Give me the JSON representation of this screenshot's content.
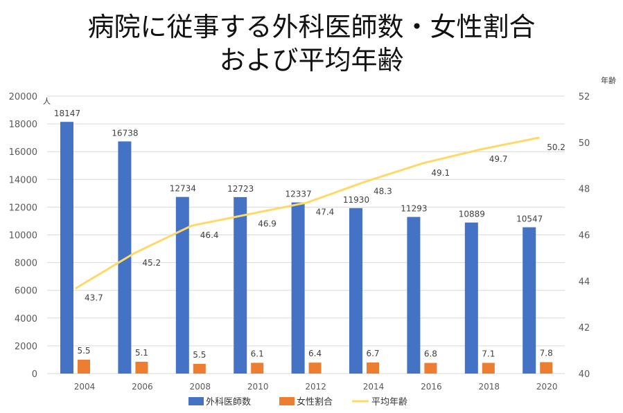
{
  "chart_data": {
    "type": "bar",
    "title": [
      "病院に従事する外科医師数・女性割合",
      "および平均年齢"
    ],
    "categories": [
      "2004",
      "2006",
      "2008",
      "2010",
      "2012",
      "2014",
      "2016",
      "2018",
      "2020"
    ],
    "left_axis": {
      "unit": "人",
      "ylim": [
        0,
        20000
      ],
      "ticks": [
        0,
        2000,
        4000,
        6000,
        8000,
        10000,
        12000,
        14000,
        16000,
        18000,
        20000
      ]
    },
    "right_axis": {
      "unit": "年齢",
      "ylim": [
        40,
        52
      ],
      "ticks": [
        40,
        42,
        44,
        46,
        48,
        50,
        52
      ]
    },
    "grid": true,
    "legend_position": "bottom",
    "series": [
      {
        "name": "外科医師数",
        "type": "bar",
        "axis": "left",
        "color": "#4472C4",
        "values": [
          18147,
          16738,
          12734,
          12723,
          12337,
          11930,
          11293,
          10889,
          10547
        ]
      },
      {
        "name": "女性割合",
        "type": "bar",
        "axis": "left",
        "unit_note": "percent of 外科医師数 (bar drawn as count)",
        "color": "#ED7D31",
        "values": [
          5.5,
          5.1,
          5.5,
          6.1,
          6.4,
          6.7,
          6.8,
          7.1,
          7.8
        ]
      },
      {
        "name": "平均年齢",
        "type": "line",
        "axis": "right",
        "color": "#FFD966",
        "values": [
          43.7,
          45.2,
          46.4,
          46.9,
          47.4,
          48.3,
          49.1,
          49.7,
          50.2
        ]
      }
    ]
  }
}
